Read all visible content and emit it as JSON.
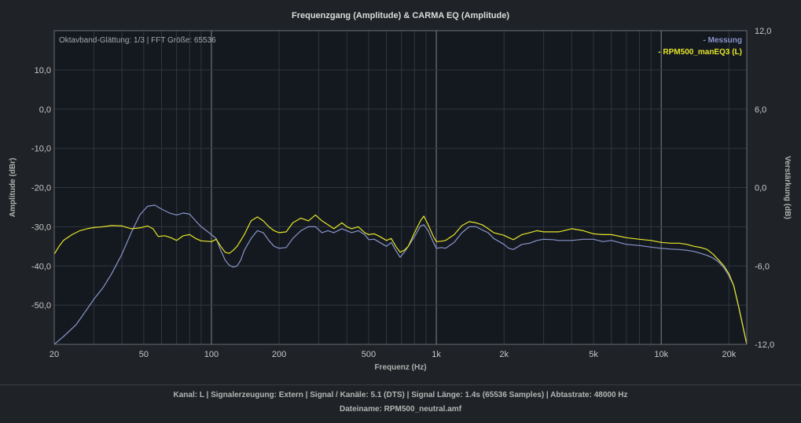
{
  "chart_data": {
    "type": "line",
    "title": "Frequenzgang (Amplitude) & CARMA EQ (Amplitude)",
    "xlabel": "Frequenz (Hz)",
    "ylabel": "Amplitude (dBr)",
    "y2label": "Verstärkung (dB)",
    "xscale": "log",
    "xlim": [
      20,
      24000
    ],
    "ylim": [
      -60,
      20
    ],
    "y2lim": [
      -12,
      12
    ],
    "grid": true,
    "legend_position": "top-right",
    "info_text": "Oktavband-Glättung: 1/3 | FFT Größe: 65536",
    "x_ticks": [
      {
        "value": 20,
        "label": "20"
      },
      {
        "value": 50,
        "label": "50"
      },
      {
        "value": 100,
        "label": "100"
      },
      {
        "value": 200,
        "label": "200"
      },
      {
        "value": 500,
        "label": "500"
      },
      {
        "value": 1000,
        "label": "1k"
      },
      {
        "value": 2000,
        "label": "2k"
      },
      {
        "value": 5000,
        "label": "5k"
      },
      {
        "value": 10000,
        "label": "10k"
      },
      {
        "value": 20000,
        "label": "20k"
      }
    ],
    "y_ticks": [
      {
        "value": 10,
        "label": "10,0"
      },
      {
        "value": 0,
        "label": "0,0"
      },
      {
        "value": -10,
        "label": "-10,0"
      },
      {
        "value": -20,
        "label": "-20,0"
      },
      {
        "value": -30,
        "label": "-30,0"
      },
      {
        "value": -40,
        "label": "-40,0"
      },
      {
        "value": -50,
        "label": "-50,0"
      }
    ],
    "y2_ticks": [
      {
        "value": 12,
        "label": "12,0"
      },
      {
        "value": 6,
        "label": "6,0"
      },
      {
        "value": 0,
        "label": "0,0"
      },
      {
        "value": -6,
        "label": "-6,0"
      },
      {
        "value": -12,
        "label": "-12,0"
      }
    ],
    "series": [
      {
        "name": "- Messung",
        "color": "#8a94c8",
        "points": [
          [
            20,
            -60
          ],
          [
            22,
            -58
          ],
          [
            25,
            -55
          ],
          [
            28,
            -51
          ],
          [
            30,
            -48.5
          ],
          [
            33,
            -45.5
          ],
          [
            36,
            -42
          ],
          [
            40,
            -37
          ],
          [
            44,
            -31.5
          ],
          [
            48,
            -27
          ],
          [
            52,
            -24.8
          ],
          [
            56,
            -24.5
          ],
          [
            60,
            -25.5
          ],
          [
            65,
            -26.5
          ],
          [
            70,
            -27
          ],
          [
            75,
            -26.5
          ],
          [
            80,
            -26.8
          ],
          [
            85,
            -28.5
          ],
          [
            90,
            -30
          ],
          [
            95,
            -31
          ],
          [
            100,
            -32
          ],
          [
            105,
            -33
          ],
          [
            110,
            -36
          ],
          [
            115,
            -38.5
          ],
          [
            120,
            -39.8
          ],
          [
            125,
            -40.3
          ],
          [
            130,
            -40
          ],
          [
            135,
            -38.5
          ],
          [
            140,
            -36
          ],
          [
            150,
            -33
          ],
          [
            160,
            -31
          ],
          [
            170,
            -31.5
          ],
          [
            180,
            -33.5
          ],
          [
            190,
            -35
          ],
          [
            200,
            -35.5
          ],
          [
            215,
            -35.3
          ],
          [
            230,
            -33
          ],
          [
            250,
            -31
          ],
          [
            270,
            -30
          ],
          [
            290,
            -30
          ],
          [
            310,
            -31.5
          ],
          [
            330,
            -31
          ],
          [
            350,
            -31.5
          ],
          [
            380,
            -30.5
          ],
          [
            400,
            -31
          ],
          [
            420,
            -31.5
          ],
          [
            450,
            -31
          ],
          [
            480,
            -32
          ],
          [
            500,
            -33.3
          ],
          [
            530,
            -33.2
          ],
          [
            560,
            -34
          ],
          [
            600,
            -35
          ],
          [
            630,
            -34
          ],
          [
            660,
            -36
          ],
          [
            690,
            -37.8
          ],
          [
            720,
            -36.5
          ],
          [
            750,
            -35
          ],
          [
            800,
            -32.5
          ],
          [
            850,
            -29.8
          ],
          [
            880,
            -29.5
          ],
          [
            920,
            -31
          ],
          [
            970,
            -34
          ],
          [
            1000,
            -35.5
          ],
          [
            1050,
            -35.3
          ],
          [
            1100,
            -35.5
          ],
          [
            1200,
            -34
          ],
          [
            1300,
            -31.5
          ],
          [
            1400,
            -30
          ],
          [
            1500,
            -30
          ],
          [
            1600,
            -30.8
          ],
          [
            1700,
            -31.5
          ],
          [
            1800,
            -33
          ],
          [
            2000,
            -34.5
          ],
          [
            2100,
            -35.5
          ],
          [
            2200,
            -35.8
          ],
          [
            2400,
            -34.5
          ],
          [
            2600,
            -34.2
          ],
          [
            2800,
            -33.5
          ],
          [
            3000,
            -33.2
          ],
          [
            3300,
            -33.3
          ],
          [
            3500,
            -33.5
          ],
          [
            4000,
            -33.5
          ],
          [
            4500,
            -33.2
          ],
          [
            5000,
            -33.2
          ],
          [
            5500,
            -33.8
          ],
          [
            6000,
            -33.5
          ],
          [
            7000,
            -34.5
          ],
          [
            8000,
            -34.8
          ],
          [
            9000,
            -35.2
          ],
          [
            10000,
            -35.5
          ],
          [
            11000,
            -35.7
          ],
          [
            12000,
            -35.8
          ],
          [
            13000,
            -36
          ],
          [
            14000,
            -36.3
          ],
          [
            15000,
            -36.8
          ],
          [
            16000,
            -37.3
          ],
          [
            17000,
            -38
          ],
          [
            18000,
            -39
          ],
          [
            19000,
            -40.5
          ],
          [
            20000,
            -42.5
          ],
          [
            21000,
            -45
          ],
          [
            22000,
            -50
          ],
          [
            23000,
            -55
          ],
          [
            24000,
            -60
          ]
        ]
      },
      {
        "name": "- RPM500_manEQ3 (L)",
        "color": "#e6e628",
        "points": [
          [
            20,
            -37
          ],
          [
            21,
            -35
          ],
          [
            22,
            -33.5
          ],
          [
            24,
            -32
          ],
          [
            26,
            -31
          ],
          [
            28,
            -30.5
          ],
          [
            30,
            -30.2
          ],
          [
            33,
            -30
          ],
          [
            36,
            -29.7
          ],
          [
            40,
            -29.8
          ],
          [
            44,
            -30.5
          ],
          [
            48,
            -30.3
          ],
          [
            52,
            -29.8
          ],
          [
            55,
            -30.5
          ],
          [
            58,
            -32.5
          ],
          [
            62,
            -32.3
          ],
          [
            66,
            -32.8
          ],
          [
            70,
            -33.5
          ],
          [
            75,
            -32.3
          ],
          [
            80,
            -32
          ],
          [
            85,
            -33
          ],
          [
            90,
            -33.6
          ],
          [
            100,
            -33.8
          ],
          [
            105,
            -33.2
          ],
          [
            110,
            -35
          ],
          [
            115,
            -36.5
          ],
          [
            120,
            -36.8
          ],
          [
            125,
            -36
          ],
          [
            130,
            -35
          ],
          [
            140,
            -32
          ],
          [
            150,
            -28.5
          ],
          [
            160,
            -27.5
          ],
          [
            170,
            -28.5
          ],
          [
            180,
            -30
          ],
          [
            190,
            -31
          ],
          [
            200,
            -31.5
          ],
          [
            215,
            -31.3
          ],
          [
            230,
            -29
          ],
          [
            250,
            -27.8
          ],
          [
            270,
            -28.5
          ],
          [
            290,
            -27
          ],
          [
            310,
            -28.5
          ],
          [
            330,
            -29.5
          ],
          [
            350,
            -30.5
          ],
          [
            380,
            -29
          ],
          [
            400,
            -30
          ],
          [
            420,
            -30.5
          ],
          [
            450,
            -30
          ],
          [
            480,
            -31.5
          ],
          [
            500,
            -32
          ],
          [
            530,
            -31.8
          ],
          [
            560,
            -32.5
          ],
          [
            600,
            -33.5
          ],
          [
            630,
            -33
          ],
          [
            660,
            -35
          ],
          [
            690,
            -36.5
          ],
          [
            720,
            -36
          ],
          [
            750,
            -35
          ],
          [
            800,
            -31.5
          ],
          [
            850,
            -28.5
          ],
          [
            880,
            -27.3
          ],
          [
            920,
            -29.5
          ],
          [
            970,
            -32.5
          ],
          [
            1000,
            -33.8
          ],
          [
            1050,
            -33.7
          ],
          [
            1100,
            -33.5
          ],
          [
            1200,
            -32
          ],
          [
            1300,
            -29.7
          ],
          [
            1400,
            -28.7
          ],
          [
            1500,
            -29
          ],
          [
            1600,
            -29.5
          ],
          [
            1700,
            -30.5
          ],
          [
            1800,
            -31.5
          ],
          [
            2000,
            -32.2
          ],
          [
            2100,
            -32.8
          ],
          [
            2200,
            -33.3
          ],
          [
            2400,
            -32
          ],
          [
            2600,
            -31.5
          ],
          [
            2800,
            -31
          ],
          [
            3000,
            -31.3
          ],
          [
            3500,
            -31.3
          ],
          [
            4000,
            -30.5
          ],
          [
            4500,
            -31
          ],
          [
            5000,
            -31.8
          ],
          [
            5500,
            -32
          ],
          [
            6000,
            -32
          ],
          [
            7000,
            -32.8
          ],
          [
            8000,
            -33.2
          ],
          [
            9000,
            -33.5
          ],
          [
            10000,
            -34
          ],
          [
            11000,
            -34.2
          ],
          [
            12000,
            -34.2
          ],
          [
            13000,
            -34.5
          ],
          [
            14000,
            -35
          ],
          [
            15000,
            -35.3
          ],
          [
            16000,
            -35.8
          ],
          [
            17000,
            -37
          ],
          [
            18000,
            -38.5
          ],
          [
            19000,
            -40
          ],
          [
            20000,
            -42
          ],
          [
            21000,
            -45
          ],
          [
            22000,
            -50
          ],
          [
            23000,
            -55
          ],
          [
            24000,
            -60
          ]
        ]
      }
    ]
  },
  "footer": {
    "line1": "Kanal: L  |  Signalerzeugung: Extern   |  Signal / Kanäle: 5.1 (DTS)  |  Signal Länge: 1.4s (65536 Samples)  |  Abtastrate: 48000 Hz",
    "line2": "Dateiname: RPM500_neutral.amf"
  }
}
